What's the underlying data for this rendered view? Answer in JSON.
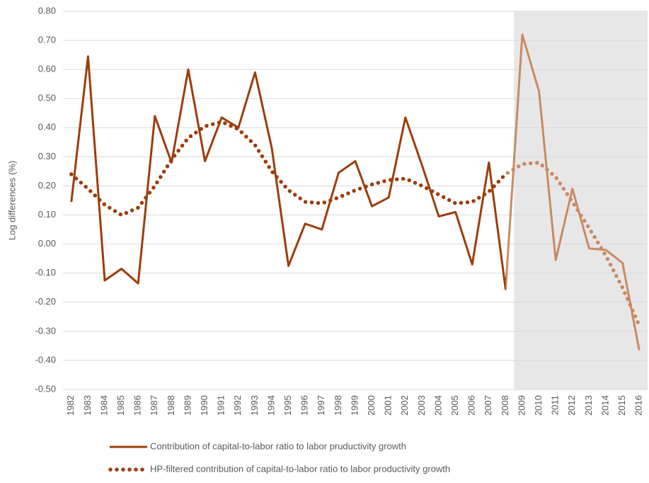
{
  "chart_data": {
    "type": "line",
    "y_label": "Log differences (%)",
    "categories": [
      "1982",
      "1983",
      "1984",
      "1985",
      "1986",
      "1987",
      "1988",
      "1989",
      "1990",
      "1991",
      "1992",
      "1993",
      "1994",
      "1995",
      "1996",
      "1997",
      "1998",
      "1999",
      "2000",
      "2001",
      "2002",
      "2003",
      "2004",
      "2005",
      "2006",
      "2007",
      "2008",
      "2009",
      "2010",
      "2011",
      "2012",
      "2013",
      "2014",
      "2015",
      "2016"
    ],
    "series": [
      {
        "name": "Contribution of capital-to-labor ratio to labor pruductivity growth",
        "color": "#9c3d0a",
        "style": "solid",
        "values": [
          0.145,
          0.645,
          -0.125,
          -0.085,
          -0.135,
          0.44,
          0.28,
          0.6,
          0.285,
          0.435,
          0.4,
          0.59,
          0.33,
          -0.075,
          0.07,
          0.05,
          0.245,
          0.285,
          0.13,
          0.16,
          0.435,
          0.27,
          0.095,
          0.11,
          -0.07,
          0.28,
          -0.155,
          0.72,
          0.525,
          -0.055,
          0.19,
          -0.015,
          -0.02,
          -0.065,
          -0.365
        ]
      },
      {
        "name": "HP-filtered contribution of capital-to-labor ratio to labor productivity growth",
        "color": "#9c3d0a",
        "style": "dotted",
        "values": [
          0.24,
          0.19,
          0.135,
          0.1,
          0.125,
          0.2,
          0.29,
          0.365,
          0.405,
          0.42,
          0.395,
          0.34,
          0.25,
          0.185,
          0.145,
          0.14,
          0.16,
          0.185,
          0.205,
          0.22,
          0.225,
          0.2,
          0.17,
          0.14,
          0.145,
          0.18,
          0.24,
          0.275,
          0.28,
          0.23,
          0.145,
          0.055,
          -0.04,
          -0.15,
          -0.28
        ]
      }
    ],
    "shaded_from": "2009",
    "shaded_color": "#e7e7e7",
    "shaded_line_color": "#c98a62",
    "ylim": [
      -0.5,
      0.8
    ],
    "yticks": [
      {
        "value": -0.5,
        "label": "-0.50"
      },
      {
        "value": -0.4,
        "label": "-0.40"
      },
      {
        "value": -0.3,
        "label": "-0.30"
      },
      {
        "value": -0.2,
        "label": "-0.20"
      },
      {
        "value": -0.1,
        "label": "-0.10"
      },
      {
        "value": 0,
        "label": "0.00"
      },
      {
        "value": 0.1,
        "label": "0.10"
      },
      {
        "value": 0.2,
        "label": "0.20"
      },
      {
        "value": 0.3,
        "label": "0.30"
      },
      {
        "value": 0.4,
        "label": "0.40"
      },
      {
        "value": 0.5,
        "label": "0.50"
      },
      {
        "value": 0.6,
        "label": "0.60"
      },
      {
        "value": 0.7,
        "label": "0.70"
      },
      {
        "value": 0.8,
        "label": "0.80"
      }
    ],
    "grid": true
  }
}
